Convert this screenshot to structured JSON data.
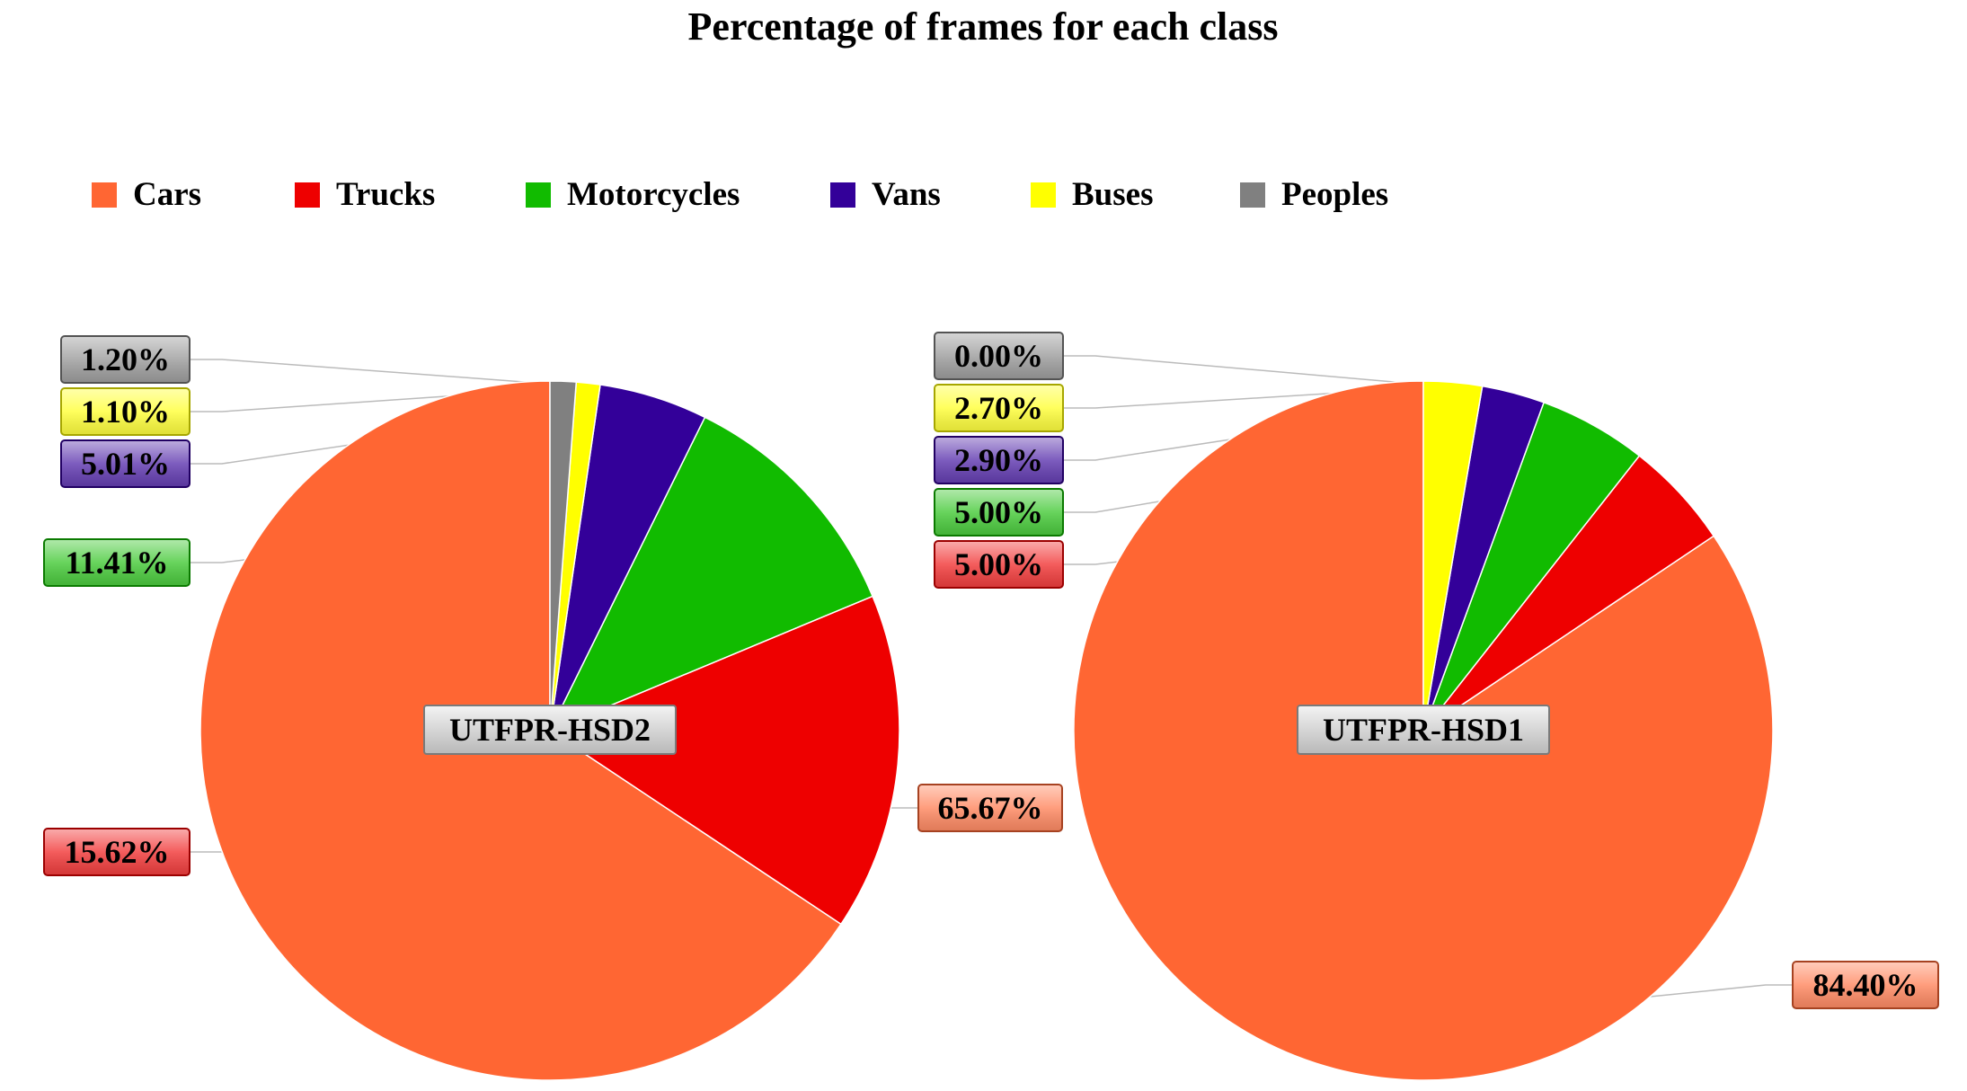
{
  "chart_data": {
    "type": "pie",
    "title": "Percentage of frames for each class",
    "legend": {
      "position": "top",
      "entries": [
        {
          "name": "Cars",
          "color": "#ff6633"
        },
        {
          "name": "Trucks",
          "color": "#ee0000"
        },
        {
          "name": "Motorcycles",
          "color": "#11bb00"
        },
        {
          "name": "Vans",
          "color": "#330099"
        },
        {
          "name": "Buses",
          "color": "#ffff00"
        },
        {
          "name": "Peoples",
          "color": "#808080"
        }
      ]
    },
    "pies": [
      {
        "name": "UTFPR-HSD2",
        "slices": [
          {
            "category": "Cars",
            "value": 65.67,
            "label": "65.67%"
          },
          {
            "category": "Trucks",
            "value": 15.62,
            "label": "15.62%"
          },
          {
            "category": "Motorcycles",
            "value": 11.41,
            "label": "11.41%"
          },
          {
            "category": "Vans",
            "value": 5.01,
            "label": "5.01%"
          },
          {
            "category": "Buses",
            "value": 1.1,
            "label": "1.10%"
          },
          {
            "category": "Peoples",
            "value": 1.2,
            "label": "1.20%"
          }
        ]
      },
      {
        "name": "UTFPR-HSD1",
        "slices": [
          {
            "category": "Cars",
            "value": 84.4,
            "label": "84.40%"
          },
          {
            "category": "Trucks",
            "value": 5.0,
            "label": "5.00%"
          },
          {
            "category": "Motorcycles",
            "value": 5.0,
            "label": "5.00%"
          },
          {
            "category": "Vans",
            "value": 2.9,
            "label": "2.90%"
          },
          {
            "category": "Buses",
            "value": 2.7,
            "label": "2.70%"
          },
          {
            "category": "Peoples",
            "value": 0.0,
            "label": "0.00%"
          }
        ]
      }
    ]
  }
}
